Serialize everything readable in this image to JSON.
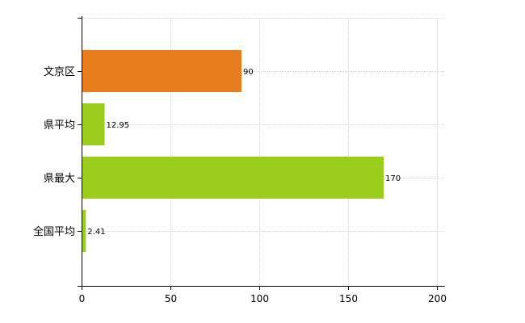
{
  "chart_data": {
    "type": "bar",
    "orientation": "horizontal",
    "categories": [
      "文京区",
      "県平均",
      "県最大",
      "全国平均"
    ],
    "values": [
      90,
      12.95,
      170,
      2.41
    ],
    "value_labels": [
      "90",
      "12.95",
      "170",
      "2.41"
    ],
    "colors": [
      "#E87D1E",
      "#9ACD1E",
      "#9ACD1E",
      "#9ACD1E"
    ],
    "xlim": [
      0,
      200
    ],
    "xticks": [
      0,
      50,
      100,
      150,
      200
    ],
    "xtick_labels": [
      "0",
      "50",
      "100",
      "150",
      "200"
    ],
    "grid": true,
    "title": "",
    "xlabel": "",
    "ylabel": ""
  }
}
